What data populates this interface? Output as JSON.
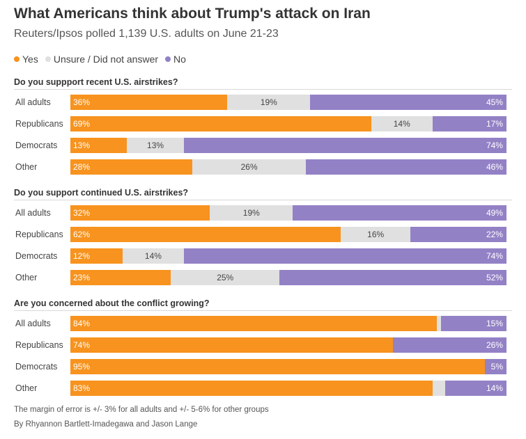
{
  "header": {
    "title": "What Americans think about Trump's attack on Iran",
    "subtitle": "Reuters/Ipsos polled 1,139 U.S. adults on June 21-23"
  },
  "legend": [
    {
      "label": "Yes",
      "color": "#f7931e"
    },
    {
      "label": "Unsure / Did not answer",
      "color": "#e0e0e0"
    },
    {
      "label": "No",
      "color": "#9381c6"
    }
  ],
  "colors": {
    "yes": "#f7931e",
    "unsure": "#e0e0e0",
    "no": "#9381c6"
  },
  "chart_data": {
    "type": "bar",
    "orientation": "horizontal-stacked-100",
    "series_names": [
      "Yes",
      "Unsure / Did not answer",
      "No"
    ],
    "panels": [
      {
        "title": "Do you suppport recent U.S. airstrikes?",
        "rows": [
          {
            "label": "All adults",
            "yes": 36,
            "unsure": 19,
            "no": 45,
            "yes_text": "36%",
            "unsure_text": "19%",
            "no_text": "45%"
          },
          {
            "label": "Republicans",
            "yes": 69,
            "unsure": 14,
            "no": 17,
            "yes_text": "69%",
            "unsure_text": "14%",
            "no_text": "17%"
          },
          {
            "label": "Democrats",
            "yes": 13,
            "unsure": 13,
            "no": 74,
            "yes_text": "13%",
            "unsure_text": "13%",
            "no_text": "74%"
          },
          {
            "label": "Other",
            "yes": 28,
            "unsure": 26,
            "no": 46,
            "yes_text": "28%",
            "unsure_text": "26%",
            "no_text": "46%"
          }
        ]
      },
      {
        "title": "Do you support continued U.S. airstrikes?",
        "rows": [
          {
            "label": "All adults",
            "yes": 32,
            "unsure": 19,
            "no": 49,
            "yes_text": "32%",
            "unsure_text": "19%",
            "no_text": "49%"
          },
          {
            "label": "Republicans",
            "yes": 62,
            "unsure": 16,
            "no": 22,
            "yes_text": "62%",
            "unsure_text": "16%",
            "no_text": "22%"
          },
          {
            "label": "Democrats",
            "yes": 12,
            "unsure": 14,
            "no": 74,
            "yes_text": "12%",
            "unsure_text": "14%",
            "no_text": "74%"
          },
          {
            "label": "Other",
            "yes": 23,
            "unsure": 25,
            "no": 52,
            "yes_text": "23%",
            "unsure_text": "25%",
            "no_text": "52%"
          }
        ]
      },
      {
        "title": "Are you concerned about the conflict growing?",
        "rows": [
          {
            "label": "All adults",
            "yes": 84,
            "unsure": 1,
            "no": 15,
            "yes_text": "84%",
            "unsure_text": "",
            "no_text": "15%"
          },
          {
            "label": "Republicans",
            "yes": 74,
            "unsure": 0,
            "no": 26,
            "yes_text": "74%",
            "unsure_text": "",
            "no_text": "26%"
          },
          {
            "label": "Democrats",
            "yes": 95,
            "unsure": 0,
            "no": 5,
            "yes_text": "95%",
            "unsure_text": "",
            "no_text": "5%"
          },
          {
            "label": "Other",
            "yes": 83,
            "unsure": 3,
            "no": 14,
            "yes_text": "83%",
            "unsure_text": "",
            "no_text": "14%"
          }
        ]
      }
    ]
  },
  "footer": {
    "note": "The margin of error is +/- 3% for all adults and +/- 5-6% for other groups",
    "byline": "By Rhyannon Bartlett-Imadegawa and Jason Lange"
  }
}
